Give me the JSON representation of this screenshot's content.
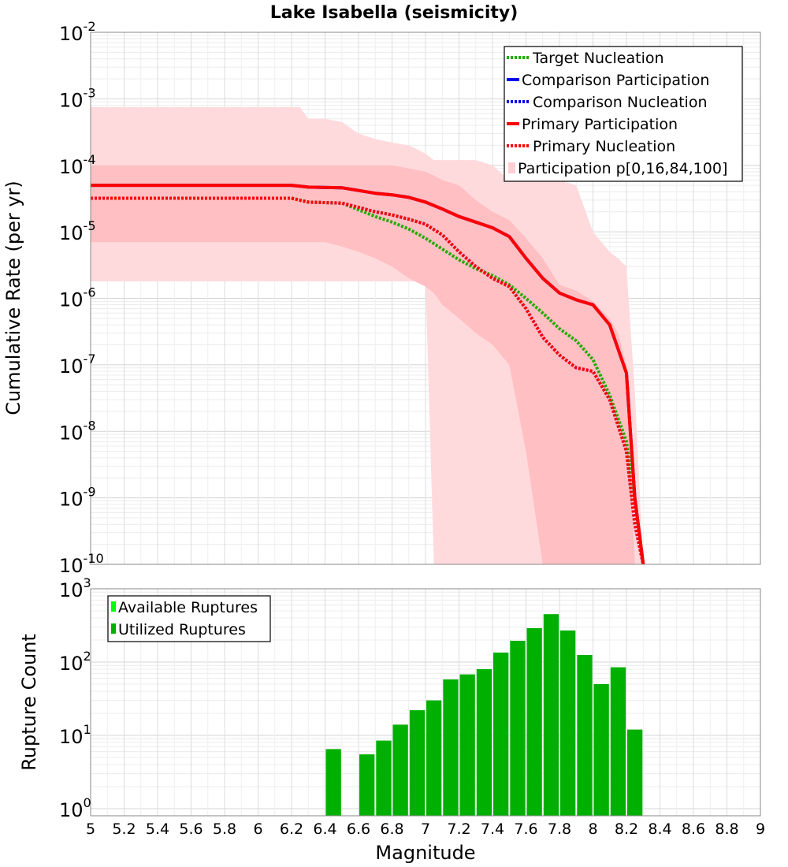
{
  "title": "Lake Isabella (seismicity)",
  "xlabel": "Magnitude",
  "colors": {
    "target_nucleation": "#22aa00",
    "comparison": "#0000ee",
    "primary": "#ff0000",
    "band_outer": "#ffdadd",
    "band_inner": "#ffbfc3",
    "available": "#00ff00",
    "utilized": "#00b000"
  },
  "chart_data": [
    {
      "type": "line",
      "ylabel": "Cumulative Rate (per yr)",
      "yscale": "log",
      "xlim": [
        5,
        9
      ],
      "ylim_exp": [
        -10,
        -2
      ],
      "ytick_exponents": [
        "-2",
        "-3",
        "-4",
        "-5",
        "-6",
        "-7",
        "-8",
        "-9",
        "-10"
      ],
      "legend": [
        "Target Nucleation",
        "Comparison Participation",
        "Comparison Nucleation",
        "Primary Participation",
        "Primary Nucleation",
        "Participation p[0,16,84,100]"
      ],
      "bands": {
        "x": [
          5.0,
          6.2,
          6.25,
          6.3,
          6.4,
          6.5,
          6.6,
          6.7,
          6.8,
          6.9,
          7.0,
          7.05,
          7.1,
          7.2,
          7.3,
          7.4,
          7.5,
          7.6,
          7.7,
          7.75,
          7.8,
          7.9,
          8.0,
          8.1,
          8.15,
          8.2,
          8.25,
          8.3
        ],
        "outer_low": [
          1.8e-06,
          1.8e-06,
          1.8e-06,
          1.8e-06,
          1.8e-06,
          1.8e-06,
          1.8e-06,
          1.8e-06,
          1.8e-06,
          1.8e-06,
          1.8e-06,
          1e-10,
          1e-10,
          1e-10,
          1e-10,
          1e-10,
          1e-10,
          1e-10,
          1e-10,
          1e-10,
          1e-10,
          1e-10,
          1e-10,
          1e-10,
          1e-10,
          1e-10,
          1e-10,
          1e-10
        ],
        "outer_high": [
          0.00075,
          0.00075,
          0.00075,
          0.0005,
          0.0005,
          0.00045,
          0.0003,
          0.00025,
          0.00022,
          0.0002,
          0.00015,
          0.00012,
          0.00012,
          0.00012,
          0.00012,
          0.0001,
          6e-05,
          6e-05,
          6e-05,
          6e-05,
          6e-05,
          5e-05,
          1e-05,
          5e-06,
          4e-06,
          3e-06,
          4e-08,
          1e-10
        ],
        "inner_low": [
          7e-06,
          7e-06,
          7e-06,
          7e-06,
          7e-06,
          6e-06,
          5e-06,
          4e-06,
          3e-06,
          2e-06,
          1.5e-06,
          1.2e-06,
          8e-07,
          5e-07,
          3e-07,
          2e-07,
          1e-07,
          5e-09,
          1e-10,
          1e-10,
          1e-10,
          1e-10,
          1e-10,
          1e-10,
          1e-10,
          1e-10,
          1e-10,
          1e-10
        ],
        "inner_high": [
          0.0001,
          0.0001,
          0.0001,
          0.0001,
          0.0001,
          0.0001,
          0.0001,
          0.0001,
          0.0001,
          9e-05,
          8e-05,
          7e-05,
          6e-05,
          5e-05,
          3e-05,
          2e-05,
          1.5e-05,
          8e-06,
          4e-06,
          2.5e-06,
          1.6e-06,
          1.3e-06,
          9e-07,
          5e-07,
          3e-07,
          1e-07,
          1e-10,
          1e-10
        ]
      },
      "series": [
        {
          "name": "Target Nucleation",
          "style": "dotted",
          "x": [
            5.0,
            6.2,
            6.3,
            6.5,
            6.7,
            6.8,
            6.9,
            7.0,
            7.1,
            7.2,
            7.3,
            7.4,
            7.5,
            7.6,
            7.7,
            7.8,
            7.9,
            8.0,
            8.1,
            8.2,
            8.25,
            8.3
          ],
          "values": [
            3.2e-05,
            3.2e-05,
            2.8e-05,
            2.7e-05,
            1.7e-05,
            1.4e-05,
            1.1e-05,
            8e-06,
            5.5e-06,
            3.8e-06,
            2.8e-06,
            2.2e-06,
            1.6e-06,
            1e-06,
            6e-07,
            3.5e-07,
            2.3e-07,
            1.2e-07,
            3.5e-08,
            7e-09,
            1e-09,
            1e-10
          ]
        },
        {
          "name": "Comparison Participation",
          "style": "solid",
          "x": [
            5.0,
            6.2,
            6.3,
            6.5,
            6.7,
            6.8,
            6.9,
            7.0,
            7.1,
            7.2,
            7.3,
            7.4,
            7.5,
            7.6,
            7.7,
            7.8,
            7.9,
            8.0,
            8.1,
            8.2,
            8.25,
            8.3
          ],
          "values": [
            5e-05,
            5e-05,
            4.7e-05,
            4.6e-05,
            3.8e-05,
            3.6e-05,
            3.3e-05,
            2.8e-05,
            2.2e-05,
            1.7e-05,
            1.4e-05,
            1.15e-05,
            8.5e-06,
            4e-06,
            2e-06,
            1.2e-06,
            9.5e-07,
            8e-07,
            4e-07,
            7.5e-08,
            1e-09,
            1e-10
          ]
        },
        {
          "name": "Comparison Nucleation",
          "style": "dotted",
          "x": [
            5.0,
            6.2,
            6.3,
            6.5,
            6.7,
            6.8,
            6.9,
            7.0,
            7.1,
            7.2,
            7.3,
            7.4,
            7.5,
            7.6,
            7.7,
            7.8,
            7.9,
            8.0,
            8.1,
            8.2,
            8.25,
            8.3
          ],
          "values": [
            3.2e-05,
            3.2e-05,
            2.8e-05,
            2.7e-05,
            2e-05,
            1.8e-05,
            1.55e-05,
            1.3e-05,
            9e-06,
            5e-06,
            3e-06,
            2e-06,
            1.5e-06,
            7e-07,
            2.6e-07,
            1.4e-07,
            9e-08,
            8e-08,
            3e-08,
            5e-09,
            4e-10,
            1e-10
          ]
        },
        {
          "name": "Primary Participation",
          "style": "solid",
          "x": [
            5.0,
            6.2,
            6.3,
            6.5,
            6.7,
            6.8,
            6.9,
            7.0,
            7.1,
            7.2,
            7.3,
            7.4,
            7.5,
            7.6,
            7.7,
            7.8,
            7.9,
            8.0,
            8.1,
            8.2,
            8.25,
            8.3
          ],
          "values": [
            5e-05,
            5e-05,
            4.7e-05,
            4.6e-05,
            3.8e-05,
            3.6e-05,
            3.3e-05,
            2.8e-05,
            2.2e-05,
            1.7e-05,
            1.4e-05,
            1.15e-05,
            8.5e-06,
            4e-06,
            2e-06,
            1.2e-06,
            9.5e-07,
            8e-07,
            4e-07,
            7.5e-08,
            1e-09,
            1e-10
          ]
        },
        {
          "name": "Primary Nucleation",
          "style": "dotted",
          "x": [
            5.0,
            6.2,
            6.3,
            6.5,
            6.7,
            6.8,
            6.9,
            7.0,
            7.1,
            7.2,
            7.3,
            7.4,
            7.5,
            7.6,
            7.7,
            7.8,
            7.9,
            8.0,
            8.1,
            8.2,
            8.25,
            8.3
          ],
          "values": [
            3.2e-05,
            3.2e-05,
            2.8e-05,
            2.7e-05,
            2e-05,
            1.8e-05,
            1.55e-05,
            1.3e-05,
            9e-06,
            5e-06,
            3e-06,
            2e-06,
            1.5e-06,
            7e-07,
            2.6e-07,
            1.4e-07,
            9e-08,
            8e-08,
            3e-08,
            5e-09,
            4e-10,
            1e-10
          ]
        }
      ]
    },
    {
      "type": "bar",
      "ylabel": "Rupture Count",
      "yscale": "log",
      "xlim": [
        5,
        9
      ],
      "ylim": [
        0.8,
        1000
      ],
      "ytick_exponents": [
        "3",
        "2",
        "1",
        "0"
      ],
      "xticks": [
        "5",
        "5.2",
        "5.4",
        "5.6",
        "5.8",
        "6",
        "6.2",
        "6.4",
        "6.6",
        "6.8",
        "7",
        "7.2",
        "7.4",
        "7.6",
        "7.8",
        "8",
        "8.2",
        "8.4",
        "8.6",
        "8.8",
        "9"
      ],
      "legend": [
        "Available Ruptures",
        "Utilized Ruptures"
      ],
      "bin_width": 0.1,
      "bin_centers": [
        6.45,
        6.65,
        6.75,
        6.85,
        6.95,
        7.05,
        7.15,
        7.25,
        7.35,
        7.45,
        7.55,
        7.65,
        7.75,
        7.85,
        7.95,
        8.05,
        8.15,
        8.25
      ],
      "values": [
        6.5,
        5.5,
        8.5,
        14,
        22,
        30,
        58,
        68,
        80,
        135,
        195,
        290,
        450,
        270,
        125,
        50,
        85,
        12
      ]
    }
  ]
}
